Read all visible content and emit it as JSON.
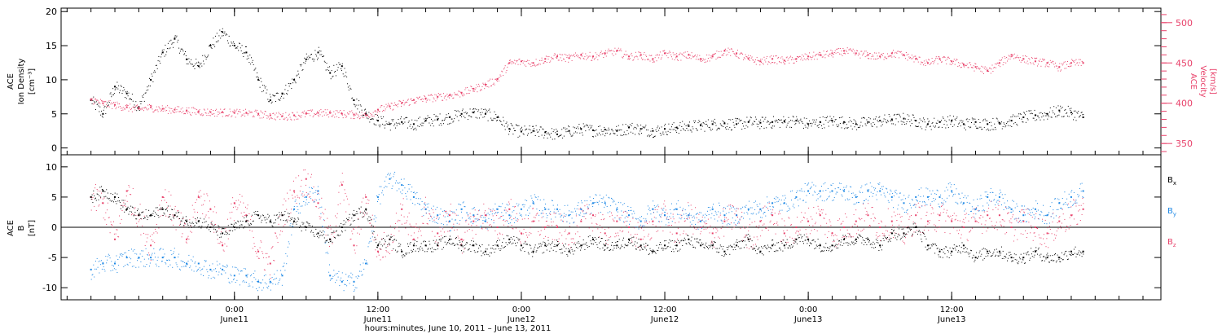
{
  "chart_data": [
    {
      "type": "scatter",
      "panel": "top",
      "left_axis": {
        "label_lines": [
          "ACE",
          "Ion Density",
          "[cm⁻³]"
        ],
        "ylim": [
          -1,
          20.5
        ],
        "ticks": [
          0,
          5,
          10,
          15,
          20
        ],
        "tick_labels": [
          "0",
          "5",
          "10",
          "15",
          "20"
        ]
      },
      "right_axis": {
        "label_lines": [
          "ACE",
          "Velocity",
          "[km/s]"
        ],
        "ylim": [
          336,
          518
        ],
        "ticks": [
          350,
          400,
          450,
          500
        ],
        "tick_labels": [
          "350",
          "400",
          "450",
          "500"
        ],
        "color": "#e8416a"
      },
      "series": [
        {
          "key": "density",
          "axis": "left",
          "color": "#000000",
          "hours": [
            0,
            1,
            2,
            3,
            4,
            5,
            6,
            7,
            8,
            9,
            10,
            11,
            12,
            13,
            14,
            15,
            16,
            17,
            18,
            19,
            20,
            21,
            22,
            23,
            24,
            25,
            26,
            27,
            28,
            29,
            30,
            31,
            32,
            33,
            34,
            35,
            36,
            37,
            38,
            39,
            40,
            41,
            42,
            43,
            44,
            45,
            46,
            47,
            48,
            49,
            50,
            51,
            52,
            53,
            54,
            55,
            56,
            57,
            58,
            59,
            60,
            61,
            62,
            63,
            64,
            65,
            66,
            67,
            68,
            69,
            70,
            71,
            72,
            73,
            74,
            75,
            76,
            77,
            78,
            79,
            80,
            81,
            82,
            83
          ],
          "values": [
            7,
            5,
            9,
            8,
            6,
            10,
            14,
            16,
            13,
            12,
            15,
            17,
            15,
            14,
            10,
            7,
            8,
            10,
            13,
            14,
            11,
            12,
            7,
            5,
            4,
            3.5,
            3.8,
            3.5,
            4,
            4.2,
            4.5,
            5,
            5.2,
            5,
            4.5,
            2.8,
            2.4,
            2.5,
            2.3,
            2.0,
            2.5,
            2.8,
            2.6,
            2.7,
            2.5,
            3.0,
            2.8,
            2.5,
            2.8,
            3.0,
            3.2,
            3.3,
            3.5,
            3.6,
            3.5,
            3.8,
            3.7,
            3.8,
            3.9,
            4.0,
            3.5,
            3.8,
            4.0,
            3.8,
            3.5,
            3.8,
            4.0,
            4.2,
            4.3,
            4.0,
            3.5,
            3.8,
            4.0,
            3.5,
            3.8,
            3.5,
            3.7,
            4.0,
            4.5,
            4.8,
            5.0,
            5.5,
            5.2,
            4.5
          ]
        },
        {
          "key": "velocity",
          "axis": "right",
          "color": "#e8416a",
          "hours": [
            0,
            1,
            2,
            3,
            4,
            5,
            6,
            7,
            8,
            9,
            10,
            11,
            12,
            13,
            14,
            15,
            16,
            17,
            18,
            19,
            20,
            21,
            22,
            23,
            24,
            25,
            26,
            27,
            28,
            29,
            30,
            31,
            32,
            33,
            34,
            35,
            36,
            37,
            38,
            39,
            40,
            41,
            42,
            43,
            44,
            45,
            46,
            47,
            48,
            49,
            50,
            51,
            52,
            53,
            54,
            55,
            56,
            57,
            58,
            59,
            60,
            61,
            62,
            63,
            64,
            65,
            66,
            67,
            68,
            69,
            70,
            71,
            72,
            73,
            74,
            75,
            76,
            77,
            78,
            79,
            80,
            81,
            82,
            83
          ],
          "values": [
            405,
            400,
            398,
            395,
            393,
            395,
            393,
            392,
            391,
            390,
            389,
            389,
            388,
            388,
            387,
            385,
            384,
            385,
            387,
            388,
            388,
            387,
            386,
            385,
            392,
            396,
            400,
            404,
            406,
            408,
            410,
            413,
            418,
            423,
            430,
            450,
            452,
            450,
            455,
            458,
            456,
            460,
            458,
            462,
            465,
            458,
            460,
            455,
            462,
            458,
            460,
            455,
            458,
            465,
            462,
            455,
            452,
            455,
            453,
            455,
            458,
            460,
            462,
            465,
            462,
            460,
            458,
            462,
            460,
            455,
            450,
            455,
            452,
            448,
            445,
            440,
            450,
            460,
            455,
            452,
            450,
            445,
            450,
            450
          ]
        }
      ]
    },
    {
      "type": "scatter",
      "panel": "bottom",
      "left_axis": {
        "label_lines": [
          "ACE",
          "B",
          "[nT]"
        ],
        "ylim": [
          -12,
          12
        ],
        "ticks": [
          -10,
          -5,
          0,
          5,
          10
        ],
        "tick_labels": [
          "-10",
          "-5",
          "0",
          "5",
          "10"
        ]
      },
      "zero_line": true,
      "legend_position": "right",
      "series": [
        {
          "key": "bx",
          "label": "B",
          "sub": "x",
          "color": "#000000",
          "hours": [
            0,
            1,
            2,
            3,
            4,
            5,
            6,
            7,
            8,
            9,
            10,
            11,
            12,
            13,
            14,
            15,
            16,
            17,
            18,
            19,
            20,
            21,
            22,
            23,
            24,
            25,
            26,
            27,
            28,
            29,
            30,
            31,
            32,
            33,
            34,
            35,
            36,
            37,
            38,
            39,
            40,
            41,
            42,
            43,
            44,
            45,
            46,
            47,
            48,
            49,
            50,
            51,
            52,
            53,
            54,
            55,
            56,
            57,
            58,
            59,
            60,
            61,
            62,
            63,
            64,
            65,
            66,
            67,
            68,
            69,
            70,
            71,
            72,
            73,
            74,
            75,
            76,
            77,
            78,
            79,
            80,
            81,
            82,
            83
          ],
          "values": [
            5,
            6,
            5,
            3,
            2,
            2,
            3,
            2,
            1,
            1,
            0,
            -1,
            0,
            1,
            2,
            1,
            2,
            1,
            0,
            -1,
            -2,
            0,
            2,
            3,
            -3,
            -2,
            -4,
            -3,
            -3,
            -3,
            -2,
            -3,
            -3,
            -4,
            -3,
            -2,
            -3,
            -4,
            -3,
            -3,
            -4,
            -3,
            -2,
            -3,
            -3,
            -2,
            -3,
            -4,
            -3,
            -3,
            -2,
            -3,
            -3,
            -4,
            -3,
            -2,
            -4,
            -3,
            -3,
            -2,
            -2,
            -3,
            -3,
            -2,
            -2,
            -2,
            -3,
            -1,
            -1,
            0,
            -3,
            -4,
            -4,
            -3,
            -5,
            -4,
            -4,
            -5,
            -5,
            -4,
            -5,
            -5,
            -4,
            -4
          ]
        },
        {
          "key": "by",
          "label": "B",
          "sub": "y",
          "color": "#1e88e5",
          "hours": [
            0,
            1,
            2,
            3,
            4,
            5,
            6,
            7,
            8,
            9,
            10,
            11,
            12,
            13,
            14,
            15,
            16,
            17,
            18,
            19,
            20,
            21,
            22,
            23,
            24,
            25,
            26,
            27,
            28,
            29,
            30,
            31,
            32,
            33,
            34,
            35,
            36,
            37,
            38,
            39,
            40,
            41,
            42,
            43,
            44,
            45,
            46,
            47,
            48,
            49,
            50,
            51,
            52,
            53,
            54,
            55,
            56,
            57,
            58,
            59,
            60,
            61,
            62,
            63,
            64,
            65,
            66,
            67,
            68,
            69,
            70,
            71,
            72,
            73,
            74,
            75,
            76,
            77,
            78,
            79,
            80,
            81,
            82,
            83
          ],
          "values": [
            -7,
            -6,
            -6,
            -5,
            -5,
            -5,
            -5,
            -5,
            -6,
            -6,
            -7,
            -7,
            -8,
            -8,
            -9,
            -9,
            -8,
            3,
            5,
            6,
            -8,
            -9,
            -9,
            -6,
            5,
            8,
            7,
            5,
            3,
            2,
            1,
            3,
            2,
            1,
            3,
            2,
            3,
            4,
            3,
            3,
            2,
            3,
            4,
            4,
            3,
            2,
            1,
            3,
            2,
            3,
            2,
            1,
            3,
            2,
            2,
            3,
            3,
            4,
            4,
            5,
            6,
            6,
            6,
            6,
            5,
            6,
            6,
            5,
            4,
            5,
            5,
            5,
            6,
            4,
            3,
            5,
            5,
            3,
            2,
            3,
            2,
            4,
            5,
            6
          ]
        },
        {
          "key": "bz",
          "label": "B",
          "sub": "z",
          "color": "#e8416a",
          "hours": [
            0,
            1,
            2,
            3,
            4,
            5,
            6,
            7,
            8,
            9,
            10,
            11,
            12,
            13,
            14,
            15,
            16,
            17,
            18,
            19,
            20,
            21,
            22,
            23,
            24,
            25,
            26,
            27,
            28,
            29,
            30,
            31,
            32,
            33,
            34,
            35,
            36,
            37,
            38,
            39,
            40,
            41,
            42,
            43,
            44,
            45,
            46,
            47,
            48,
            49,
            50,
            51,
            52,
            53,
            54,
            55,
            56,
            57,
            58,
            59,
            60,
            61,
            62,
            63,
            64,
            65,
            66,
            67,
            68,
            69,
            70,
            71,
            72,
            73,
            74,
            75,
            76,
            77,
            78,
            79,
            80,
            81,
            82,
            83
          ],
          "values": [
            5,
            4,
            -2,
            6,
            2,
            -3,
            5,
            2,
            -2,
            5,
            3,
            -3,
            4,
            2,
            -4,
            -6,
            2,
            6,
            8,
            4,
            -2,
            7,
            -3,
            5,
            -4,
            -2,
            3,
            -2,
            3,
            -1,
            2,
            -2,
            1,
            2,
            0,
            3,
            -1,
            1,
            0,
            0,
            -1,
            1,
            2,
            -1,
            1,
            0,
            -2,
            1,
            2,
            -1,
            2,
            0,
            -1,
            1,
            2,
            -2,
            1,
            2,
            -1,
            0,
            1,
            2,
            -1,
            0,
            1,
            2,
            0,
            1,
            -1,
            2,
            1,
            2,
            1,
            0,
            1,
            2,
            2,
            0,
            1,
            0,
            -1,
            1,
            2,
            3
          ]
        }
      ]
    }
  ],
  "x_axis": {
    "xlim_hours": [
      -2.5,
      89.5
    ],
    "major_ticks": [
      {
        "hour": 12,
        "time": "0:00",
        "date": "June11"
      },
      {
        "hour": 24,
        "time": "12:00",
        "date": "June11"
      },
      {
        "hour": 36,
        "time": "0:00",
        "date": "June12"
      },
      {
        "hour": 48,
        "time": "12:00",
        "date": "June12"
      },
      {
        "hour": 60,
        "time": "0:00",
        "date": "June13"
      },
      {
        "hour": 72,
        "time": "12:00",
        "date": "June13"
      }
    ],
    "minor_tick_step_hours": 2,
    "title": "hours:minutes, June 10, 2011 – June 13, 2011"
  }
}
